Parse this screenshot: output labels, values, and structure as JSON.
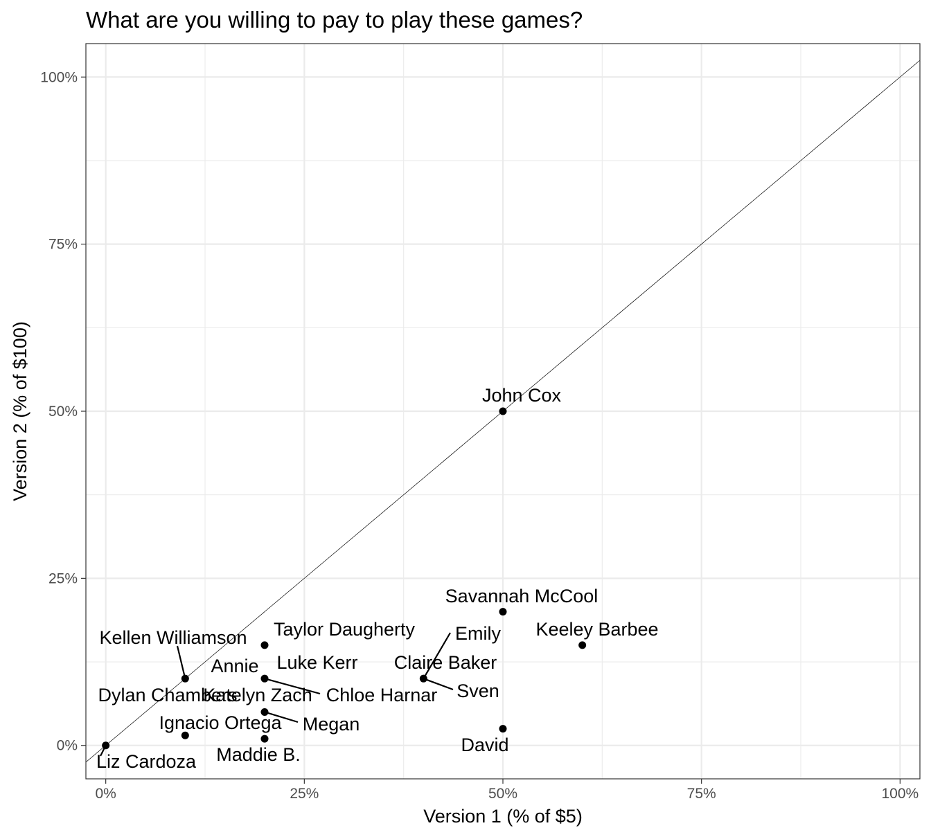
{
  "chart_data": {
    "type": "scatter",
    "title": "What are you willing to pay to play these games?",
    "xlabel": "Version 1 (% of $5)",
    "ylabel": "Version 2 (% of $100)",
    "xlim": [
      -0.025,
      1.025
    ],
    "ylim": [
      -0.05,
      1.05
    ],
    "x_ticks": [
      0,
      0.25,
      0.5,
      0.75,
      1
    ],
    "x_tick_labels": [
      "0%",
      "25%",
      "50%",
      "75%",
      "100%"
    ],
    "y_ticks": [
      0,
      0.25,
      0.5,
      0.75,
      1
    ],
    "y_tick_labels": [
      "0%",
      "25%",
      "50%",
      "75%",
      "100%"
    ],
    "grid": true,
    "reference_line": "y = x",
    "points": [
      {
        "label": "John Cox",
        "x": 0.5,
        "y": 0.5
      },
      {
        "label": "Savannah McCool",
        "x": 0.5,
        "y": 0.2
      },
      {
        "label": "Keeley Barbee",
        "x": 0.6,
        "y": 0.15
      },
      {
        "label": "Taylor Daugherty",
        "x": 0.2,
        "y": 0.15
      },
      {
        "label": "Emily",
        "x": 0.4,
        "y": 0.1
      },
      {
        "label": "Claire Baker",
        "x": 0.4,
        "y": 0.1
      },
      {
        "label": "Sven",
        "x": 0.4,
        "y": 0.1
      },
      {
        "label": "Kellen Williamson",
        "x": 0.1,
        "y": 0.1
      },
      {
        "label": "Annie",
        "x": 0.1,
        "y": 0.1
      },
      {
        "label": "Luke Kerr",
        "x": 0.2,
        "y": 0.1
      },
      {
        "label": "Chloe Harnar",
        "x": 0.2,
        "y": 0.1
      },
      {
        "label": "Katelyn Zach",
        "x": 0.2,
        "y": 0.05
      },
      {
        "label": "Megan",
        "x": 0.2,
        "y": 0.05
      },
      {
        "label": "Dylan Chambers",
        "x": 0.1,
        "y": 0.015
      },
      {
        "label": "Ignacio Ortega",
        "x": 0.1,
        "y": 0.015
      },
      {
        "label": "Maddie B.",
        "x": 0.2,
        "y": 0.01
      },
      {
        "label": "David",
        "x": 0.5,
        "y": 0.025
      },
      {
        "label": "Liz Cardoza",
        "x": 0,
        "y": 0
      }
    ]
  }
}
